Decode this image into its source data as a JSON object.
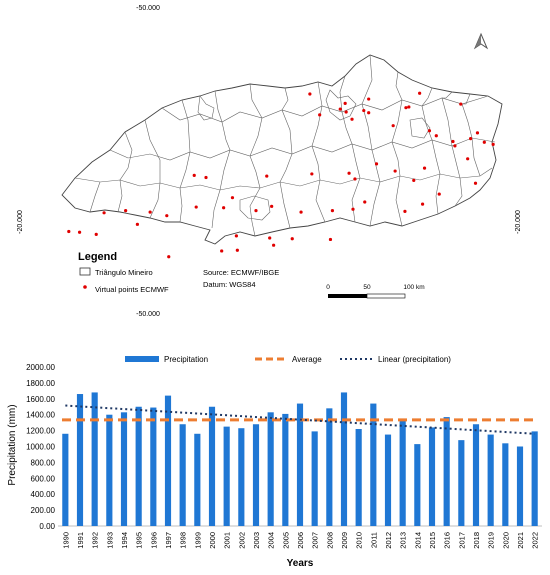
{
  "map": {
    "coord_top": "-50.000",
    "coord_bottom": "-50.000",
    "coord_left": "-20.000",
    "coord_right": "-20.000",
    "legend_title": "Legend",
    "legend_region": "Triângulo Mineiro",
    "legend_points": "Virtual points ECMWF",
    "source": "Source: ECMWF/IBGE",
    "datum": "Datum: WGS84",
    "scale_labels": [
      "0",
      "50",
      "100 km"
    ],
    "north_arrow_icon": "north-arrow-icon",
    "point_color": "#e00000"
  },
  "chart_data": {
    "type": "bar",
    "categories": [
      "1990",
      "1991",
      "1992",
      "1993",
      "1994",
      "1995",
      "1996",
      "1997",
      "1998",
      "1999",
      "2000",
      "2001",
      "2002",
      "2003",
      "2004",
      "2005",
      "2006",
      "2007",
      "2008",
      "2009",
      "2010",
      "2011",
      "2012",
      "2013",
      "2014",
      "2015",
      "2016",
      "2017",
      "2018",
      "2019",
      "2020",
      "2021",
      "2022"
    ],
    "series": [
      {
        "name": "Precipitation",
        "type": "bar",
        "color": "#1f77d4",
        "values": [
          1160,
          1660,
          1680,
          1400,
          1430,
          1500,
          1490,
          1640,
          1280,
          1160,
          1500,
          1250,
          1230,
          1280,
          1430,
          1410,
          1540,
          1190,
          1480,
          1680,
          1220,
          1540,
          1150,
          1350,
          1030,
          1240,
          1370,
          1080,
          1280,
          1150,
          1040,
          1000,
          1190
        ]
      },
      {
        "name": "Average",
        "type": "line",
        "style": "dashed",
        "color": "#ed7d31",
        "value": 1335
      },
      {
        "name": "Linear (precipitation)",
        "type": "line",
        "style": "dotted",
        "color": "#1f3864",
        "start": 1515,
        "end": 1160
      }
    ],
    "xlabel": "Years",
    "ylabel": "Precipitation (mm)",
    "ylim": [
      0,
      2000
    ],
    "yticks": [
      "0.00",
      "200.00",
      "400.00",
      "600.00",
      "800.00",
      "1000.00",
      "1200.00",
      "1400.00",
      "1600.00",
      "1800.00",
      "2000.00"
    ],
    "grid": false,
    "legend": "top"
  }
}
